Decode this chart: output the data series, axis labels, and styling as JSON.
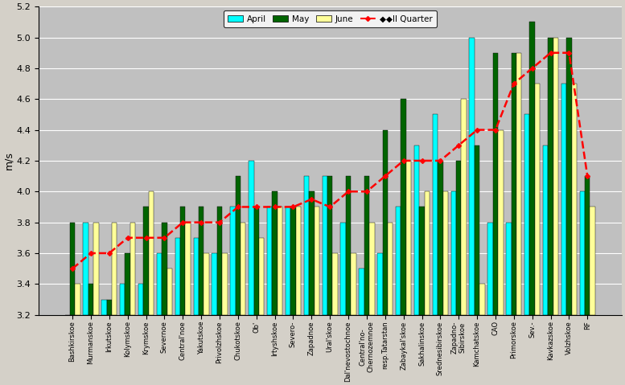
{
  "categories": [
    "Bashkirskoe",
    "Murmanskoe",
    "Irkutskoe",
    "Kolymskoe",
    "Krymskoe",
    "Severnoe",
    "Central'noe",
    "Yakutskoe",
    "Privolzhskoe",
    "Chukotskoe",
    "Ob'",
    "Irtyshskoe",
    "Severo-",
    "Zapadnoe",
    "Ural'skoe",
    "Dal'nevostochnoe",
    "Central'no-\nChernozemnoe",
    "resp.Tatarstan",
    "Zabaykal'skoe",
    "Sakhalinskoe",
    "Srednesibirskoe",
    "Zapadno-\nSibirskoe",
    "Kamchatskoe",
    "CAO",
    "Primorskoe",
    "Sev.-",
    "Kavkazskoe",
    "Volzhskoe",
    "RF"
  ],
  "april": [
    3.2,
    3.8,
    3.3,
    3.4,
    3.4,
    3.6,
    3.7,
    3.7,
    3.6,
    3.9,
    4.2,
    3.9,
    3.9,
    4.1,
    4.1,
    3.8,
    3.5,
    3.6,
    3.9,
    4.3,
    4.5,
    4.0,
    5.0,
    3.8,
    3.8,
    4.5,
    4.3,
    4.7,
    4.0
  ],
  "may": [
    3.8,
    3.4,
    3.3,
    3.6,
    3.9,
    3.8,
    3.9,
    3.9,
    3.9,
    4.1,
    3.9,
    4.0,
    3.9,
    4.0,
    4.1,
    4.1,
    4.1,
    4.4,
    4.6,
    3.9,
    4.2,
    4.2,
    4.3,
    4.9,
    4.9,
    5.1,
    5.0,
    5.0,
    4.1
  ],
  "june": [
    3.4,
    3.8,
    3.8,
    3.8,
    4.0,
    3.5,
    3.8,
    3.6,
    3.6,
    3.8,
    3.7,
    3.9,
    3.9,
    3.9,
    3.6,
    3.6,
    3.8,
    3.8,
    4.2,
    4.0,
    4.0,
    4.6,
    3.4,
    4.4,
    4.9,
    4.7,
    5.0,
    4.7,
    3.9
  ],
  "ii_quarter": [
    3.5,
    3.6,
    3.6,
    3.7,
    3.7,
    3.7,
    3.8,
    3.8,
    3.8,
    3.9,
    3.9,
    3.9,
    3.9,
    3.95,
    3.9,
    4.0,
    4.0,
    4.1,
    4.2,
    4.2,
    4.2,
    4.3,
    4.4,
    4.4,
    4.7,
    4.8,
    4.9,
    4.9,
    4.1
  ],
  "color_april": "#00FFFF",
  "color_may": "#006400",
  "color_june": "#FFFF99",
  "color_ii_quarter_line": "#FF0000",
  "background_color": "#C0C0C0",
  "plot_bg": "#C8C8C8",
  "ylim_min": 3.2,
  "ylim_max": 5.2,
  "ylabel": "m/s"
}
